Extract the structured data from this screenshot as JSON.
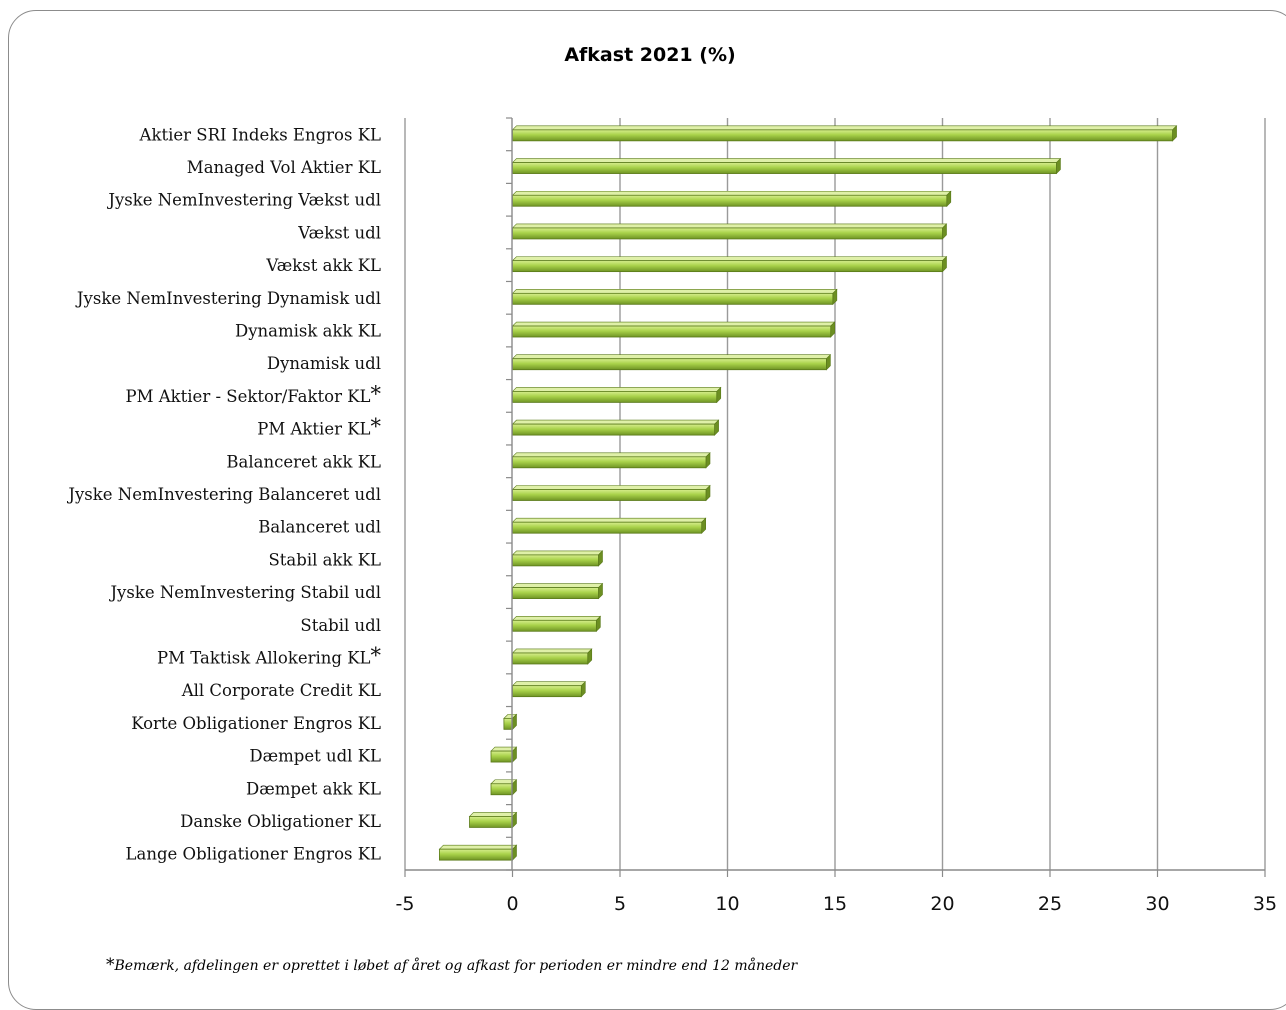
{
  "chart_data": {
    "type": "bar",
    "orientation": "horizontal",
    "title": "Afkast 2021 (%)",
    "xlim": [
      -5,
      35
    ],
    "xticks": [
      -5,
      0,
      5,
      10,
      15,
      20,
      25,
      30,
      35
    ],
    "grid": "vertical",
    "legend": "none",
    "bar_color": "#9ccc3c",
    "bar_edge_color": "#5a7a1a",
    "categories": [
      "Aktier SRI Indeks Engros KL",
      "Managed Vol Aktier KL",
      "Jyske NemInvestering Vækst udl",
      "Vækst udl",
      "Vækst akk KL",
      "Jyske NemInvestering Dynamisk udl",
      "Dynamisk akk KL",
      "Dynamisk udl",
      "PM Aktier - Sektor/Faktor KL*",
      "PM Aktier KL*",
      "Balanceret akk KL",
      "Jyske NemInvestering Balanceret udl",
      "Balanceret udl",
      "Stabil akk KL",
      "Jyske NemInvestering Stabil udl",
      "Stabil udl",
      "PM Taktisk Allokering KL*",
      "All Corporate Credit KL",
      "Korte Obligationer Engros KL",
      "Dæmpet udl KL",
      "Dæmpet akk KL",
      "Danske Obligationer KL",
      "Lange Obligationer Engros KL"
    ],
    "values": [
      30.7,
      25.3,
      20.2,
      20.0,
      20.0,
      14.9,
      14.8,
      14.6,
      9.5,
      9.4,
      9.0,
      9.0,
      8.8,
      4.0,
      4.0,
      3.9,
      3.5,
      3.2,
      -0.4,
      -1.0,
      -1.0,
      -2.0,
      -3.4
    ]
  },
  "footnote": {
    "star": "*",
    "text": "Bemærk, afdelingen er oprettet i løbet af året og afkast for perioden er mindre end 12 måneder"
  }
}
